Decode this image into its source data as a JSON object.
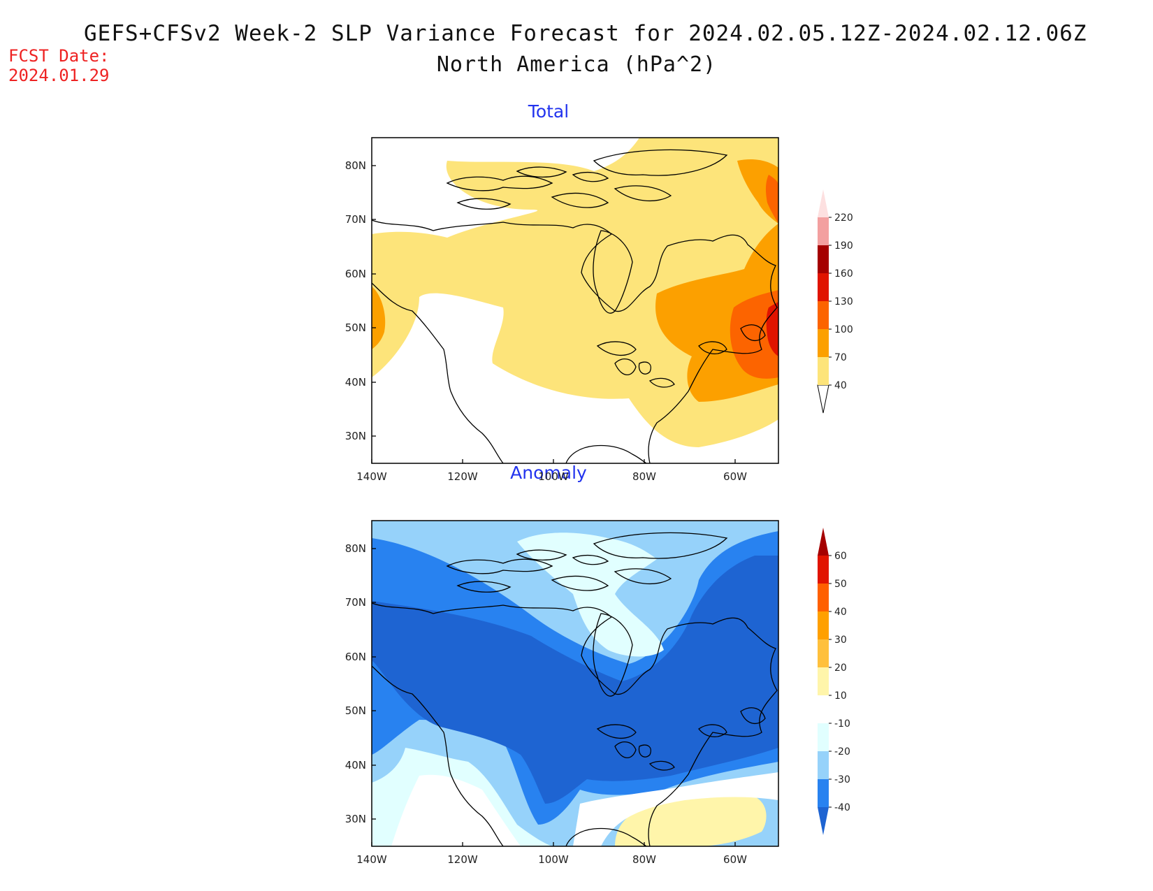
{
  "header": {
    "title": "GEFS+CFSv2 Week-2 SLP Variance Forecast for 2024.02.05.12Z-2024.02.12.06Z",
    "subtitle": "North America (hPa^2)",
    "fcst_label": "FCST Date:",
    "fcst_date": "2024.01.29"
  },
  "axes": {
    "lat_ticks": [
      "80N",
      "70N",
      "60N",
      "50N",
      "40N",
      "30N"
    ],
    "lon_ticks": [
      "140W",
      "120W",
      "100W",
      "80W",
      "60W"
    ]
  },
  "panels": [
    {
      "title": "Total",
      "colorbar": {
        "labels": [
          "40",
          "70",
          "100",
          "130",
          "160",
          "190",
          "220"
        ],
        "colors": [
          "#fde47a",
          "#fca000",
          "#fc6400",
          "#e01400",
          "#a50000",
          "#f3a0a0",
          "#fde0e0"
        ],
        "bottom_color": "#ffffff"
      }
    },
    {
      "title": "Anomaly",
      "colorbar": {
        "labels": [
          "-40",
          "-30",
          "-20",
          "-10",
          "10",
          "20",
          "30",
          "40",
          "50",
          "60"
        ],
        "colors": [
          "#1e64d2",
          "#2882f0",
          "#96d2fa",
          "#e1ffff",
          "#ffffff",
          "#fff5aa",
          "#ffc03c",
          "#ffa000",
          "#ff6000",
          "#e11400",
          "#a50000"
        ]
      }
    }
  ]
}
